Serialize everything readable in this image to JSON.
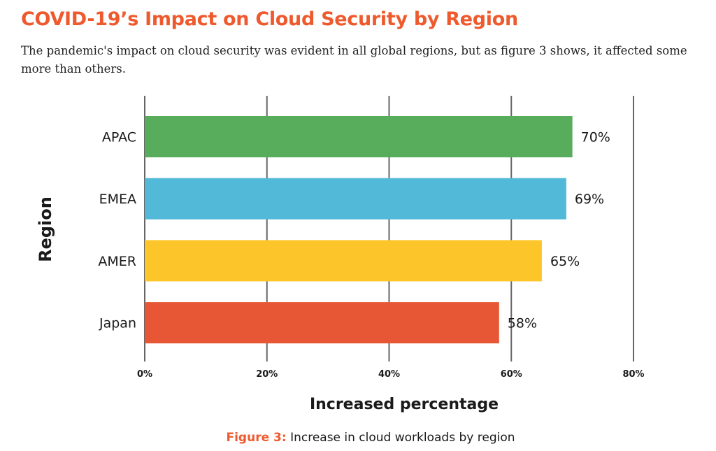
{
  "header": {
    "title": "COVID-19’s Impact on Cloud Security by Region",
    "description": "The pandemic's impact on cloud security was evident in all global regions, but as figure 3 shows, it affected some more than others."
  },
  "caption": {
    "label": "Figure 3:",
    "text": "Increase in cloud workloads by region"
  },
  "colors": {
    "title": "#ee5a2e",
    "grid": "#666666"
  },
  "chart_data": {
    "type": "bar",
    "orientation": "horizontal",
    "categories": [
      "APAC",
      "EMEA",
      "AMER",
      "Japan"
    ],
    "values": [
      70,
      69,
      65,
      58
    ],
    "data_labels": [
      "70%",
      "69%",
      "65%",
      "58%"
    ],
    "bar_colors": [
      "#58ad5c",
      "#53b9d8",
      "#fcc62a",
      "#e75735"
    ],
    "xlabel": "Increased percentage",
    "ylabel": "Region",
    "xlim": [
      0,
      80
    ],
    "xticks": [
      0,
      20,
      40,
      60,
      80
    ],
    "xtick_labels": [
      "0%",
      "20%",
      "40%",
      "60%",
      "80%"
    ],
    "grid": true,
    "legend": "none"
  }
}
